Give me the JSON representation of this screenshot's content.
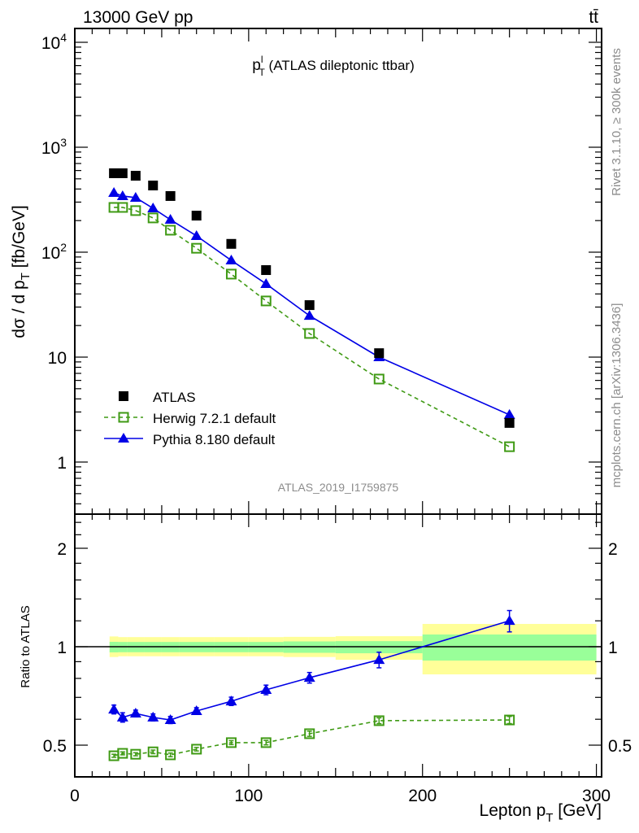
{
  "header": {
    "energy": "13000 GeV pp",
    "process": "tt̄"
  },
  "side_texts": {
    "rivet": "Rivet 3.1.10, ≥ 300k events",
    "mcplots": "mcplots.cern.ch [arXiv:1306.3436]"
  },
  "chart_data": {
    "type": "scatter",
    "title": {
      "p": "p",
      "sup": "l",
      "sub": "T",
      "rest": " (ATLAS dileptonic ttbar)"
    },
    "analysis_id": "ATLAS_2019_I1759875",
    "xlabel": {
      "main": "Lepton p",
      "sub": "T",
      "tail": " [GeV]"
    },
    "ylabel": {
      "main": "dσ / d p",
      "sub": "T",
      "tail": " [fb/GeV]"
    },
    "ratio_ylabel": "Ratio to ATLAS",
    "xlim": [
      0,
      303
    ],
    "ylim": [
      0.32,
      21000
    ],
    "yscale": "log",
    "ratio_ylim": [
      0.4,
      2.54
    ],
    "ratio_yscale": "log",
    "x_ticks": [
      "0",
      "100",
      "200",
      "300"
    ],
    "x_tick_values": [
      0,
      100,
      200,
      300
    ],
    "y_ticks": [
      {
        "base": "1",
        "exp": ""
      },
      {
        "base": "10",
        "exp": ""
      },
      {
        "base": "10",
        "exp": "2"
      },
      {
        "base": "10",
        "exp": "3"
      },
      {
        "base": "10",
        "exp": "4"
      }
    ],
    "y_tick_values": [
      1,
      10,
      100,
      1000,
      10000
    ],
    "ratio_ticks": [
      "0.5",
      "1",
      "2"
    ],
    "ratio_tick_values": [
      0.5,
      1,
      2
    ],
    "legend_position": "lower-left",
    "bin_edges": [
      20,
      25,
      30,
      40,
      50,
      60,
      80,
      100,
      120,
      150,
      200,
      300
    ],
    "x": [
      22.5,
      27.5,
      35,
      45,
      55,
      70,
      90,
      110,
      135,
      175,
      250
    ],
    "series": [
      {
        "name": "ATLAS",
        "color": "#000000",
        "marker": "square-filled",
        "values": [
          565,
          565,
          535,
          432,
          343,
          223,
          120,
          67.5,
          31.3,
          10.9,
          2.36
        ]
      },
      {
        "name": "Herwig 7.2.1 default",
        "color": "#3f9a14",
        "marker": "square-open",
        "line": "dashed",
        "values": [
          267,
          267,
          249,
          212,
          162,
          109,
          61.8,
          34.3,
          16.8,
          6.18,
          1.4
        ],
        "ratio": [
          0.464,
          0.472,
          0.469,
          0.477,
          0.467,
          0.486,
          0.509,
          0.509,
          0.542,
          0.594,
          0.597
        ],
        "ratio_err": [
          0.005,
          0.005,
          0.005,
          0.006,
          0.006,
          0.006,
          0.007,
          0.008,
          0.01,
          0.012,
          0.015
        ]
      },
      {
        "name": "Pythia 8.180 default",
        "color": "#0000e6",
        "marker": "triangle-filled",
        "line": "solid",
        "values": [
          368,
          343,
          331,
          262,
          204,
          143,
          83.6,
          49.9,
          24.8,
          10.0,
          2.82
        ],
        "ratio": [
          0.643,
          0.608,
          0.625,
          0.608,
          0.597,
          0.636,
          0.681,
          0.738,
          0.804,
          0.912,
          1.2
        ],
        "ratio_err": [
          0.02,
          0.02,
          0.015,
          0.015,
          0.015,
          0.015,
          0.02,
          0.025,
          0.03,
          0.05,
          0.09
        ]
      }
    ],
    "ratio_band_total": [
      [
        0.93,
        1.075
      ],
      [
        0.935,
        1.07
      ],
      [
        0.935,
        1.07
      ],
      [
        0.935,
        1.07
      ],
      [
        0.935,
        1.07
      ],
      [
        0.935,
        1.07
      ],
      [
        0.935,
        1.07
      ],
      [
        0.935,
        1.07
      ],
      [
        0.93,
        1.072
      ],
      [
        0.912,
        1.077
      ],
      [
        0.823,
        1.174
      ]
    ],
    "ratio_band_stat": [
      [
        0.961,
        1.035
      ],
      [
        0.962,
        1.034
      ],
      [
        0.962,
        1.034
      ],
      [
        0.962,
        1.034
      ],
      [
        0.962,
        1.034
      ],
      [
        0.962,
        1.034
      ],
      [
        0.962,
        1.034
      ],
      [
        0.962,
        1.034
      ],
      [
        0.958,
        1.038
      ],
      [
        0.955,
        1.04
      ],
      [
        0.907,
        1.09
      ]
    ],
    "band_colors": {
      "total": "#ffff99",
      "stat": "#99ff99"
    }
  }
}
